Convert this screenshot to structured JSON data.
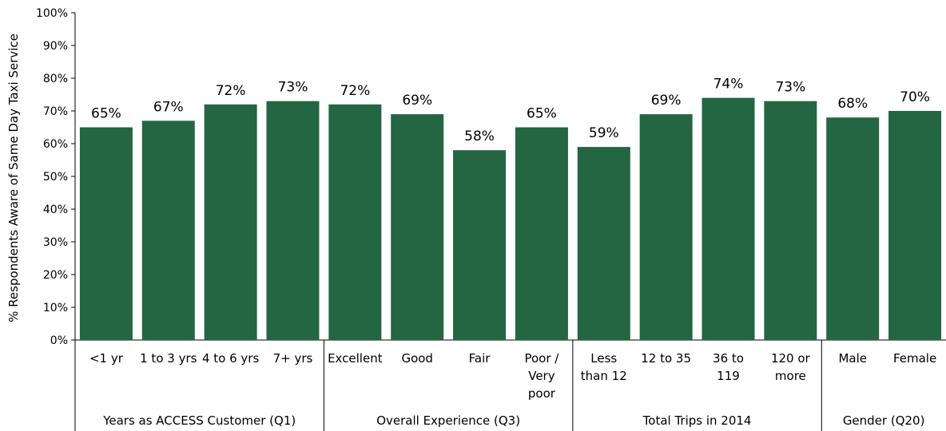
{
  "chart_data": {
    "type": "bar",
    "ylabel": "% Respondents Aware of Same Day Taxi Service",
    "ylim": [
      0,
      100
    ],
    "yticks": [
      "0%",
      "10%",
      "20%",
      "30%",
      "40%",
      "50%",
      "60%",
      "70%",
      "80%",
      "90%",
      "100%"
    ],
    "bar_color": "#236641",
    "grid": false,
    "legend": "none",
    "categories": [
      [
        "<1 yr"
      ],
      [
        "1 to 3 yrs"
      ],
      [
        "4 to 6 yrs"
      ],
      [
        "7+ yrs"
      ],
      [
        "Excellent"
      ],
      [
        "Good"
      ],
      [
        "Fair"
      ],
      [
        "Poor /",
        "Very",
        "poor"
      ],
      [
        "Less",
        "than 12"
      ],
      [
        "12 to 35"
      ],
      [
        "36 to",
        "119"
      ],
      [
        "120 or",
        "more"
      ],
      [
        "Male"
      ],
      [
        "Female"
      ]
    ],
    "values": [
      65,
      67,
      72,
      73,
      72,
      69,
      58,
      65,
      59,
      69,
      74,
      73,
      68,
      70
    ],
    "value_labels": [
      "65%",
      "67%",
      "72%",
      "73%",
      "72%",
      "69%",
      "58%",
      "65%",
      "59%",
      "69%",
      "74%",
      "73%",
      "68%",
      "70%"
    ],
    "groups": [
      {
        "label": "Years as ACCESS Customer (Q1)",
        "count": 4
      },
      {
        "label": "Overall Experience (Q3)",
        "count": 4
      },
      {
        "label": "Total Trips in 2014",
        "count": 4
      },
      {
        "label": "Gender (Q20)",
        "count": 2
      }
    ]
  }
}
